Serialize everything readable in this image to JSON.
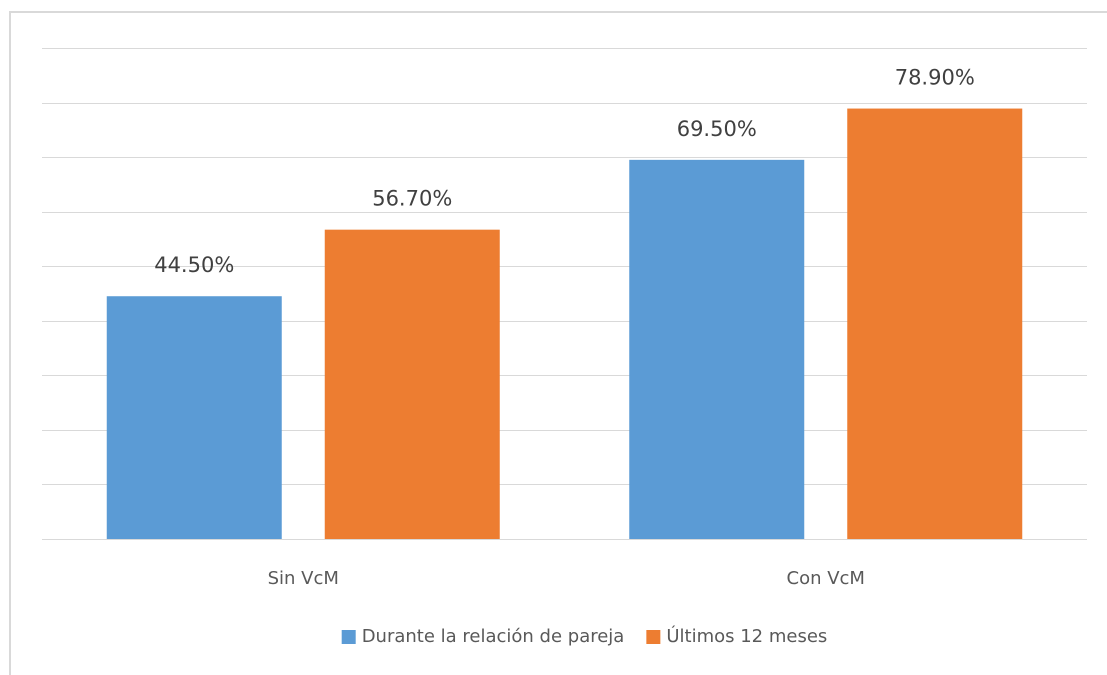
{
  "chart_data": {
    "type": "bar",
    "categories": [
      "Sin VcM",
      "Con VcM"
    ],
    "series": [
      {
        "name": "Durante la relación de pareja",
        "color": "#5b9bd5",
        "values": [
          44.5,
          69.5
        ],
        "value_labels": [
          "44.50%",
          "69.50%"
        ]
      },
      {
        "name": "Últimos 12 meses",
        "color": "#ed7d31",
        "values": [
          56.7,
          78.9
        ],
        "value_labels": [
          "56.70%",
          "78.90%"
        ]
      }
    ],
    "ylim": [
      0,
      90
    ],
    "yticks": [
      0,
      10,
      20,
      30,
      40,
      50,
      60,
      70,
      80,
      90
    ],
    "grid": true,
    "legend": "bottom"
  }
}
